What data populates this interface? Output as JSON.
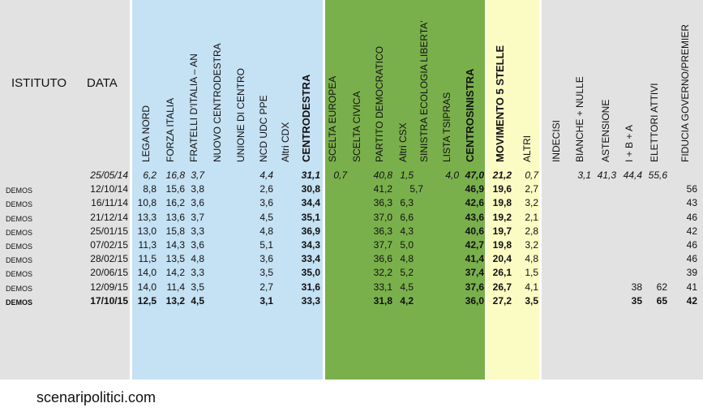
{
  "header": {
    "istituto": "ISTITUTO",
    "data": "DATA",
    "columns": [
      {
        "key": "lega_nord",
        "label": "LEGA NORD",
        "bold": false
      },
      {
        "key": "forza_italia",
        "label": "FORZA ITALIA",
        "bold": false
      },
      {
        "key": "fratelli_italia",
        "label": "FRATELLI D'ITALIA – AN",
        "bold": false
      },
      {
        "key": "nuovo_cd",
        "label": "NUOVO  CENTRODESTRA",
        "bold": false
      },
      {
        "key": "unione_centro",
        "label": "UNIONE DI CENTRO",
        "bold": false
      },
      {
        "key": "ncd_udc_ppe",
        "label": "NCD UDC PPE",
        "bold": false
      },
      {
        "key": "altri_cdx",
        "label": "Altri CDX",
        "bold": false
      },
      {
        "key": "centrodestra",
        "label": "CENTRODESTRA",
        "bold": true
      },
      {
        "key": "scelta_europea",
        "label": "SCELTA EUROPEA",
        "bold": false
      },
      {
        "key": "scelta_civica",
        "label": "SCELTA CIVICA",
        "bold": false
      },
      {
        "key": "pd",
        "label": "PARTITO DEMOCRATICO",
        "bold": false
      },
      {
        "key": "altri_csx",
        "label": "Altri CSX",
        "bold": false
      },
      {
        "key": "sel",
        "label": "SINISTRA ECOLOGIA LIBERTA'",
        "bold": false
      },
      {
        "key": "tsipras",
        "label": "LISTA TSIPRAS",
        "bold": false
      },
      {
        "key": "centrosinistra",
        "label": "CENTROSINISTRA",
        "bold": true
      },
      {
        "key": "m5s",
        "label": "MOVIMENTO 5 STELLE",
        "bold": true
      },
      {
        "key": "altri",
        "label": "ALTRI",
        "bold": false
      },
      {
        "key": "indecisi",
        "label": "INDECISI",
        "bold": false
      },
      {
        "key": "bianche",
        "label": "BIANCHE + NULLE",
        "bold": false
      },
      {
        "key": "astensione",
        "label": "ASTENSIONE",
        "bold": false
      },
      {
        "key": "iba",
        "label": "I + B + A",
        "bold": false
      },
      {
        "key": "elettori",
        "label": "ELETTORI ATTIVI",
        "bold": false
      },
      {
        "key": "fiducia",
        "label": "FIDUCIA GOVERNO/PREMIER",
        "bold": false
      }
    ]
  },
  "rows": [
    {
      "istituto": "",
      "data": "25/05/14",
      "italic": true,
      "bold": false,
      "values": {
        "lega_nord": "6,2",
        "forza_italia": "16,8",
        "fratelli_italia": "3,7",
        "ncd_udc_ppe": "4,4",
        "centrodestra": "31,1",
        "scelta_europea": "0,7",
        "pd": "40,8",
        "altri_csx": "1,5",
        "tsipras": "4,0",
        "centrosinistra": "47,0",
        "m5s": "21,2",
        "altri": "0,7",
        "bianche": "3,1",
        "astensione": "41,3",
        "iba": "44,4",
        "elettori": "55,6"
      }
    },
    {
      "istituto": "DEMOS",
      "data": "12/10/14",
      "italic": false,
      "bold": false,
      "values": {
        "lega_nord": "8,8",
        "forza_italia": "15,6",
        "fratelli_italia": "3,8",
        "ncd_udc_ppe": "2,6",
        "centrodestra": "30,8",
        "pd": "41,2",
        "sel": "5,7",
        "centrosinistra": "46,9",
        "m5s": "19,6",
        "altri": "2,7",
        "fiducia": "56"
      }
    },
    {
      "istituto": "DEMOS",
      "data": "16/11/14",
      "italic": false,
      "bold": false,
      "values": {
        "lega_nord": "10,8",
        "forza_italia": "16,2",
        "fratelli_italia": "3,6",
        "ncd_udc_ppe": "3,6",
        "centrodestra": "34,4",
        "pd": "36,3",
        "altri_csx": "6,3",
        "centrosinistra": "42,6",
        "m5s": "19,8",
        "altri": "3,2",
        "fiducia": "43"
      }
    },
    {
      "istituto": "DEMOS",
      "data": "21/12/14",
      "italic": false,
      "bold": false,
      "values": {
        "lega_nord": "13,3",
        "forza_italia": "13,6",
        "fratelli_italia": "3,7",
        "ncd_udc_ppe": "4,5",
        "centrodestra": "35,1",
        "pd": "37,0",
        "altri_csx": "6,6",
        "centrosinistra": "43,6",
        "m5s": "19,2",
        "altri": "2,1",
        "fiducia": "46"
      }
    },
    {
      "istituto": "DEMOS",
      "data": "25/01/15",
      "italic": false,
      "bold": false,
      "values": {
        "lega_nord": "13,0",
        "forza_italia": "15,8",
        "fratelli_italia": "3,3",
        "ncd_udc_ppe": "4,8",
        "centrodestra": "36,9",
        "pd": "36,3",
        "altri_csx": "4,3",
        "centrosinistra": "40,6",
        "m5s": "19,7",
        "altri": "2,8",
        "fiducia": "42"
      }
    },
    {
      "istituto": "DEMOS",
      "data": "07/02/15",
      "italic": false,
      "bold": false,
      "values": {
        "lega_nord": "11,3",
        "forza_italia": "14,3",
        "fratelli_italia": "3,6",
        "ncd_udc_ppe": "5,1",
        "centrodestra": "34,3",
        "pd": "37,7",
        "altri_csx": "5,0",
        "centrosinistra": "42,7",
        "m5s": "19,8",
        "altri": "3,2",
        "fiducia": "46"
      }
    },
    {
      "istituto": "DEMOS",
      "data": "28/02/15",
      "italic": false,
      "bold": false,
      "values": {
        "lega_nord": "11,5",
        "forza_italia": "13,5",
        "fratelli_italia": "4,8",
        "ncd_udc_ppe": "3,6",
        "centrodestra": "33,4",
        "pd": "36,6",
        "altri_csx": "4,8",
        "centrosinistra": "41,4",
        "m5s": "20,4",
        "altri": "4,8",
        "fiducia": "46"
      }
    },
    {
      "istituto": "DEMOS",
      "data": "20/06/15",
      "italic": false,
      "bold": false,
      "values": {
        "lega_nord": "14,0",
        "forza_italia": "14,2",
        "fratelli_italia": "3,3",
        "ncd_udc_ppe": "3,5",
        "centrodestra": "35,0",
        "pd": "32,2",
        "altri_csx": "5,2",
        "centrosinistra": "37,4",
        "m5s": "26,1",
        "altri": "1,5",
        "fiducia": "39"
      }
    },
    {
      "istituto": "DEMOS",
      "data": "12/09/15",
      "italic": false,
      "bold": false,
      "values": {
        "lega_nord": "14,0",
        "forza_italia": "11,4",
        "fratelli_italia": "3,5",
        "ncd_udc_ppe": "2,7",
        "centrodestra": "31,6",
        "pd": "33,1",
        "altri_csx": "4,5",
        "centrosinistra": "37,6",
        "m5s": "26,7",
        "altri": "4,1",
        "iba": "38",
        "elettori": "62",
        "fiducia": "41"
      }
    },
    {
      "istituto": "DEMOS",
      "data": "17/10/15",
      "italic": false,
      "bold": true,
      "values": {
        "lega_nord": "12,5",
        "forza_italia": "13,2",
        "fratelli_italia": "4,5",
        "ncd_udc_ppe": "3,1",
        "centrodestra": "33,3",
        "pd": "31,8",
        "altri_csx": "4,2",
        "centrosinistra": "36,0",
        "m5s": "27,2",
        "altri": "3,5",
        "iba": "35",
        "elettori": "65",
        "fiducia": "42"
      }
    }
  ],
  "colors": {
    "grey": "#e2e2e2",
    "blue": "#c5e1f4",
    "green": "#7ab04c",
    "yellow": "#fbfbc4"
  },
  "footer": "scenaripolitici.com"
}
